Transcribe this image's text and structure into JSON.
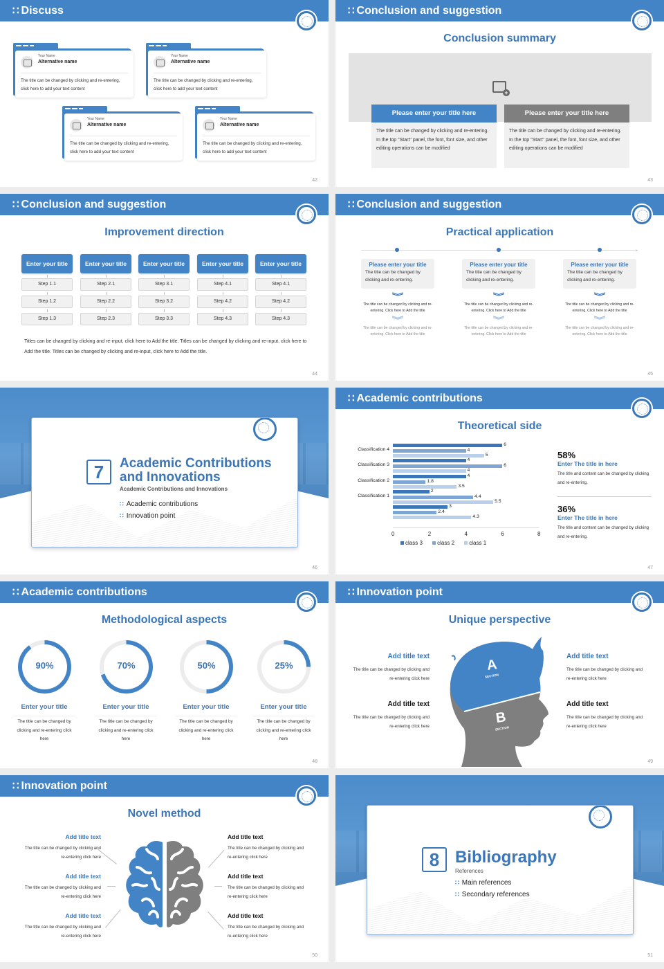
{
  "theme": {
    "accent": "#4384c6",
    "accent_dark": "#3a76b8",
    "gray_block": "#7f7f7f",
    "gutter": "#ececec"
  },
  "slides": {
    "s42": {
      "header": "Discuss",
      "page": "42",
      "cards": [
        {
          "name": "Your Name",
          "alt": "Alternative name",
          "text": "The title can be changed by clicking and re-entering, click here to add your text content"
        },
        {
          "name": "Your Name",
          "alt": "Alternative name",
          "text": "The title can be changed by clicking and re-entering, click here to add your text content"
        },
        {
          "name": "Your Name",
          "alt": "Alternative name",
          "text": "The title can be changed by clicking and re-entering, click here to add your text content"
        },
        {
          "name": "Your Name",
          "alt": "Alternative name",
          "text": "The title can be changed by clicking and re-entering, click here to add your text content"
        }
      ]
    },
    "s43": {
      "header": "Conclusion and suggestion",
      "title": "Conclusion summary",
      "page": "43",
      "boxes": [
        {
          "title": "Please enter your title here",
          "text": "The title can be changed by clicking and re-entering. In the top \"Start\" panel, the font, font size, and other editing operations can be modified"
        },
        {
          "title": "Please enter your title here",
          "text": "The title can be changed by clicking and re-entering. In the top \"Start\" panel, the font, font size, and other editing operations can be modified"
        }
      ]
    },
    "s44": {
      "header": "Conclusion and suggestion",
      "title": "Improvement direction",
      "page": "44",
      "columns": [
        {
          "title": "Enter your title",
          "steps": [
            "Step 1.1",
            "Step 1.2",
            "Step 1.3"
          ]
        },
        {
          "title": "Enter your title",
          "steps": [
            "Step 2.1",
            "Step 2.2",
            "Step 2.3"
          ]
        },
        {
          "title": "Enter your title",
          "steps": [
            "Step 3.1",
            "Step 3.2",
            "Step 3.3"
          ]
        },
        {
          "title": "Enter your title",
          "steps": [
            "Step 4.1",
            "Step 4.2",
            "Step 4.3"
          ]
        },
        {
          "title": "Enter your title",
          "steps": [
            "Step 4.1",
            "Step 4.2",
            "Step 4.3"
          ]
        }
      ],
      "note": "Titles can be changed by clicking and re-input, click here to Add the title. Titles can be changed by clicking and re-input, click here to Add the title. Titles can be changed by clicking and re-input, click here to Add the title."
    },
    "s45": {
      "header": "Conclusion and suggestion",
      "title": "Practical application",
      "page": "45",
      "items": [
        {
          "title": "Please enter your title",
          "text": "The title can be changed by clicking and re-entering.",
          "step1": "The title can be changed by clicking and re-entering. Click here to Add the title",
          "step2": "The title can be changed by clicking and re-entering. Click here to Add the title"
        },
        {
          "title": "Please enter your title",
          "text": "The title can be changed by clicking and re-entering.",
          "step1": "The title can be changed by clicking and re-entering. Click here to Add the title",
          "step2": "The title can be changed by clicking and re-entering. Click here to Add the title"
        },
        {
          "title": "Please enter your title",
          "text": "The title can be changed by clicking and re-entering.",
          "step1": "The title can be changed by clicking and re-entering. Click here to Add the title",
          "step2": "The title can be changed by clicking and re-entering. Click here to Add the title"
        }
      ]
    },
    "s46": {
      "number": "7",
      "title_line1": "Academic Contributions",
      "title_line2": "and Innovations",
      "subtitle": "Academic Contributions and Innovations",
      "items": [
        "Academic contributions",
        "Innovation point"
      ],
      "page": "46"
    },
    "s47": {
      "header": "Academic contributions",
      "title": "Theoretical side",
      "page": "47",
      "stats": [
        {
          "pct": "58%",
          "title": "Enter The title in here",
          "text": "The title and content can be changed by clicking and re-entering."
        },
        {
          "pct": "36%",
          "title": "Enter The title in here",
          "text": "The title and content can be changed by clicking and re-entering."
        }
      ]
    },
    "s48": {
      "header": "Academic contributions",
      "title": "Methodological aspects",
      "page": "48",
      "rings": [
        {
          "pct": "90%",
          "value": 90,
          "title": "Enter your title",
          "text": "The title can be changed by clicking and re-entering click here"
        },
        {
          "pct": "70%",
          "value": 70,
          "title": "Enter your title",
          "text": "The title can be changed by clicking and re-entering click here"
        },
        {
          "pct": "50%",
          "value": 50,
          "title": "Enter your title",
          "text": "The title can be changed by clicking and re-entering click here"
        },
        {
          "pct": "25%",
          "value": 25,
          "title": "Enter your title",
          "text": "The title can be changed by clicking and re-entering click here"
        }
      ]
    },
    "s49": {
      "header": "Innovation point",
      "title": "Unique perspective",
      "page": "49",
      "section_a": "A",
      "section_b": "B",
      "section_label": "SECTION",
      "left": [
        {
          "title": "Add title text",
          "text": "The title can be changed by clicking and re-entering click here"
        },
        {
          "title": "Add title text",
          "text": "The title can be changed by clicking and re-entering click here"
        }
      ],
      "right": [
        {
          "title": "Add title text",
          "text": "The title can be changed by clicking and re-entering click here"
        },
        {
          "title": "Add title text",
          "text": "The title can be changed by clicking and re-entering click here"
        }
      ]
    },
    "s50": {
      "header": "Innovation point",
      "title": "Novel method",
      "page": "50",
      "left": [
        {
          "title": "Add title text",
          "text": "The title can be changed by clicking and re-entering click here"
        },
        {
          "title": "Add title text",
          "text": "The title can be changed by clicking and re-entering click here"
        },
        {
          "title": "Add title text",
          "text": "The title can be changed by clicking and re-entering click here"
        }
      ],
      "right": [
        {
          "title": "Add title text",
          "text": "The title can be changed by clicking and re-entering click here"
        },
        {
          "title": "Add title text",
          "text": "The title can be changed by clicking and re-entering click here"
        },
        {
          "title": "Add title text",
          "text": "The title can be changed by clicking and re-entering click here"
        }
      ]
    },
    "s51": {
      "number": "8",
      "title": "Bibliography",
      "subtitle": "References",
      "items": [
        "Main references",
        "Secondary references"
      ],
      "page": "51"
    }
  },
  "chart_data": {
    "type": "bar",
    "orientation": "horizontal",
    "title": "Theoretical side",
    "categories": [
      "",
      "Classification 1",
      "Classification 2",
      "Classification 3",
      "Classification 4"
    ],
    "series": [
      {
        "name": "class 3",
        "color": "#3a76b8",
        "values": [
          3,
          2,
          4,
          4,
          6
        ]
      },
      {
        "name": "class 2",
        "color": "#7fa5d4",
        "values": [
          2.4,
          4.4,
          1.8,
          6,
          4
        ]
      },
      {
        "name": "class 1",
        "color": "#b9cfea",
        "values": [
          4.3,
          5.5,
          3.5,
          4,
          5
        ]
      }
    ],
    "xlim": [
      0,
      8
    ],
    "xticks": [
      "0",
      "2",
      "4",
      "6",
      "8"
    ],
    "grid": false,
    "legend_position": "bottom",
    "data_labels": true
  }
}
